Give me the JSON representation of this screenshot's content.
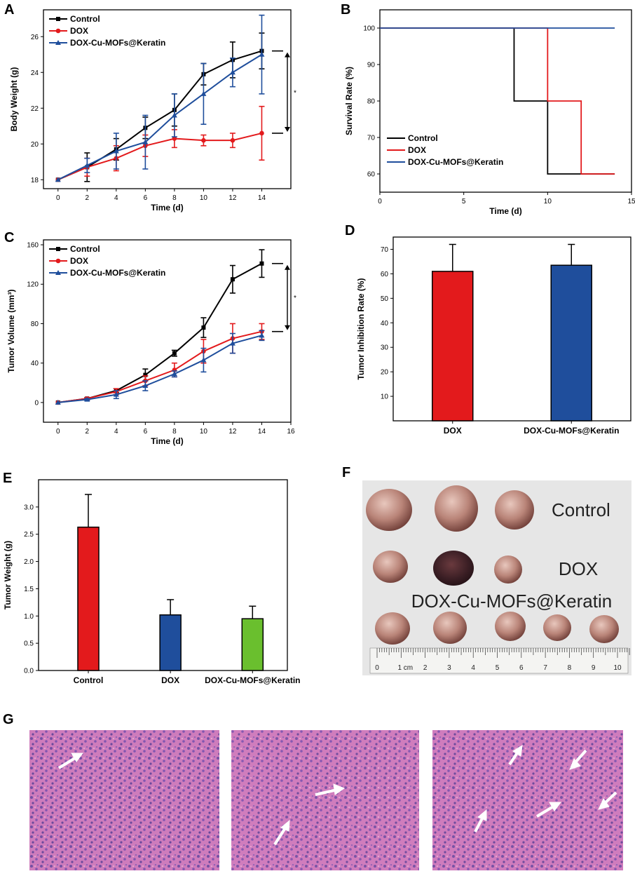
{
  "colors": {
    "control": "#000000",
    "dox": "#e31a1c",
    "dcm": "#1f4e9c",
    "green": "#6abf2e"
  },
  "chart_data": [
    {
      "panel": "A",
      "type": "line",
      "xlabel": "Time (d)",
      "ylabel": "Body Weight (g)",
      "xlim": [
        -1,
        16
      ],
      "ylim": [
        17.5,
        27.5
      ],
      "xticks": [
        0,
        2,
        4,
        6,
        8,
        10,
        12,
        14
      ],
      "yticks": [
        18,
        20,
        22,
        24,
        26
      ],
      "x": [
        0,
        2,
        4,
        6,
        8,
        10,
        12,
        14
      ],
      "series": [
        {
          "name": "Control",
          "key": "control",
          "marker": "square",
          "values": [
            18,
            18.7,
            19.7,
            20.9,
            21.9,
            23.9,
            24.7,
            25.2
          ],
          "err": [
            0,
            0.8,
            0.6,
            0.6,
            0.9,
            0.6,
            1.0,
            1.0
          ]
        },
        {
          "name": "DOX",
          "key": "dox",
          "marker": "circle",
          "values": [
            18,
            18.7,
            19.2,
            19.9,
            20.3,
            20.2,
            20.2,
            20.6
          ],
          "err": [
            0,
            0.5,
            0.7,
            0.6,
            0.5,
            0.3,
            0.4,
            1.5
          ]
        },
        {
          "name": "DOX-Cu-MOFs@Keratin",
          "key": "dcm",
          "marker": "triangle",
          "values": [
            18,
            18.8,
            19.6,
            20.1,
            21.6,
            22.8,
            24,
            25
          ],
          "err": [
            0,
            0.4,
            1.0,
            1.5,
            1.2,
            1.7,
            0.8,
            2.2
          ]
        }
      ],
      "annotation": "*"
    },
    {
      "panel": "B",
      "type": "line",
      "step": true,
      "xlabel": "Time (d)",
      "ylabel": "Survival Rate (%)",
      "xlim": [
        0,
        15
      ],
      "ylim": [
        55,
        105
      ],
      "xticks": [
        0,
        5,
        10,
        15
      ],
      "yticks": [
        60,
        70,
        80,
        90,
        100
      ],
      "series": [
        {
          "name": "Control",
          "key": "control",
          "points": [
            [
              0,
              100
            ],
            [
              8,
              100
            ],
            [
              8,
              80
            ],
            [
              10,
              80
            ],
            [
              10,
              60
            ],
            [
              14,
              60
            ]
          ]
        },
        {
          "name": "DOX",
          "key": "dox",
          "points": [
            [
              0,
              100
            ],
            [
              10,
              100
            ],
            [
              10,
              80
            ],
            [
              12,
              80
            ],
            [
              12,
              60
            ],
            [
              14,
              60
            ]
          ]
        },
        {
          "name": "DOX-Cu-MOFs@Keratin",
          "key": "dcm",
          "points": [
            [
              0,
              100
            ],
            [
              14,
              100
            ]
          ]
        }
      ]
    },
    {
      "panel": "C",
      "type": "line",
      "xlabel": "Time (d)",
      "ylabel": "Tumor Volume (mm³)",
      "xlim": [
        -1,
        16
      ],
      "ylim": [
        -20,
        165
      ],
      "xticks": [
        0,
        2,
        4,
        6,
        8,
        10,
        12,
        14,
        16
      ],
      "yticks": [
        0,
        40,
        80,
        120,
        160
      ],
      "x": [
        0,
        2,
        4,
        6,
        8,
        10,
        12,
        14
      ],
      "series": [
        {
          "name": "Control",
          "key": "control",
          "marker": "square",
          "values": [
            0,
            4,
            12,
            28,
            50,
            76,
            125,
            141
          ],
          "err": [
            0,
            1,
            2,
            6,
            3,
            10,
            14,
            14
          ]
        },
        {
          "name": "DOX",
          "key": "dox",
          "marker": "circle",
          "values": [
            0,
            4,
            11,
            22,
            33,
            52,
            65,
            72
          ],
          "err": [
            0,
            1,
            3,
            5,
            7,
            12,
            15,
            8
          ]
        },
        {
          "name": "DOX-Cu-MOFs@Keratin",
          "key": "dcm",
          "marker": "triangle",
          "values": [
            0,
            3,
            8,
            17,
            29,
            43,
            60,
            68
          ],
          "err": [
            0,
            1,
            4,
            5,
            3,
            12,
            10,
            5
          ]
        }
      ],
      "annotation": "*"
    },
    {
      "panel": "D",
      "type": "bar",
      "ylabel": "Tumor Inhibition Rate (%)",
      "ylim": [
        0,
        75
      ],
      "yticks": [
        10,
        20,
        30,
        40,
        50,
        60,
        70
      ],
      "categories": [
        "DOX",
        "DOX-Cu-MOFs@Keratin"
      ],
      "values": [
        61,
        63.5
      ],
      "err": [
        11,
        8.5
      ],
      "bar_colors": [
        "dox",
        "dcm"
      ]
    },
    {
      "panel": "E",
      "type": "bar",
      "ylabel": "Tumor Weight (g)",
      "ylim": [
        0,
        3.5
      ],
      "yticks": [
        0.0,
        0.5,
        1.0,
        1.5,
        2.0,
        2.5,
        3.0
      ],
      "categories": [
        "Control",
        "DOX",
        "DOX-Cu-MOFs@Keratin"
      ],
      "values": [
        2.63,
        1.02,
        0.95
      ],
      "err": [
        0.6,
        0.28,
        0.23
      ],
      "bar_colors": [
        "dox",
        "dcm",
        "green"
      ]
    }
  ],
  "panel_labels": {
    "A": "A",
    "B": "B",
    "C": "C",
    "D": "D",
    "E": "E",
    "F": "F",
    "G": "G"
  },
  "photo": {
    "labels": [
      "Control",
      "DOX",
      "DOX-Cu-MOFs@Keratin"
    ],
    "ruler_numbers": [
      "0",
      "1 cm",
      "2",
      "3",
      "4",
      "5",
      "6",
      "7",
      "8",
      "9",
      "10"
    ]
  }
}
